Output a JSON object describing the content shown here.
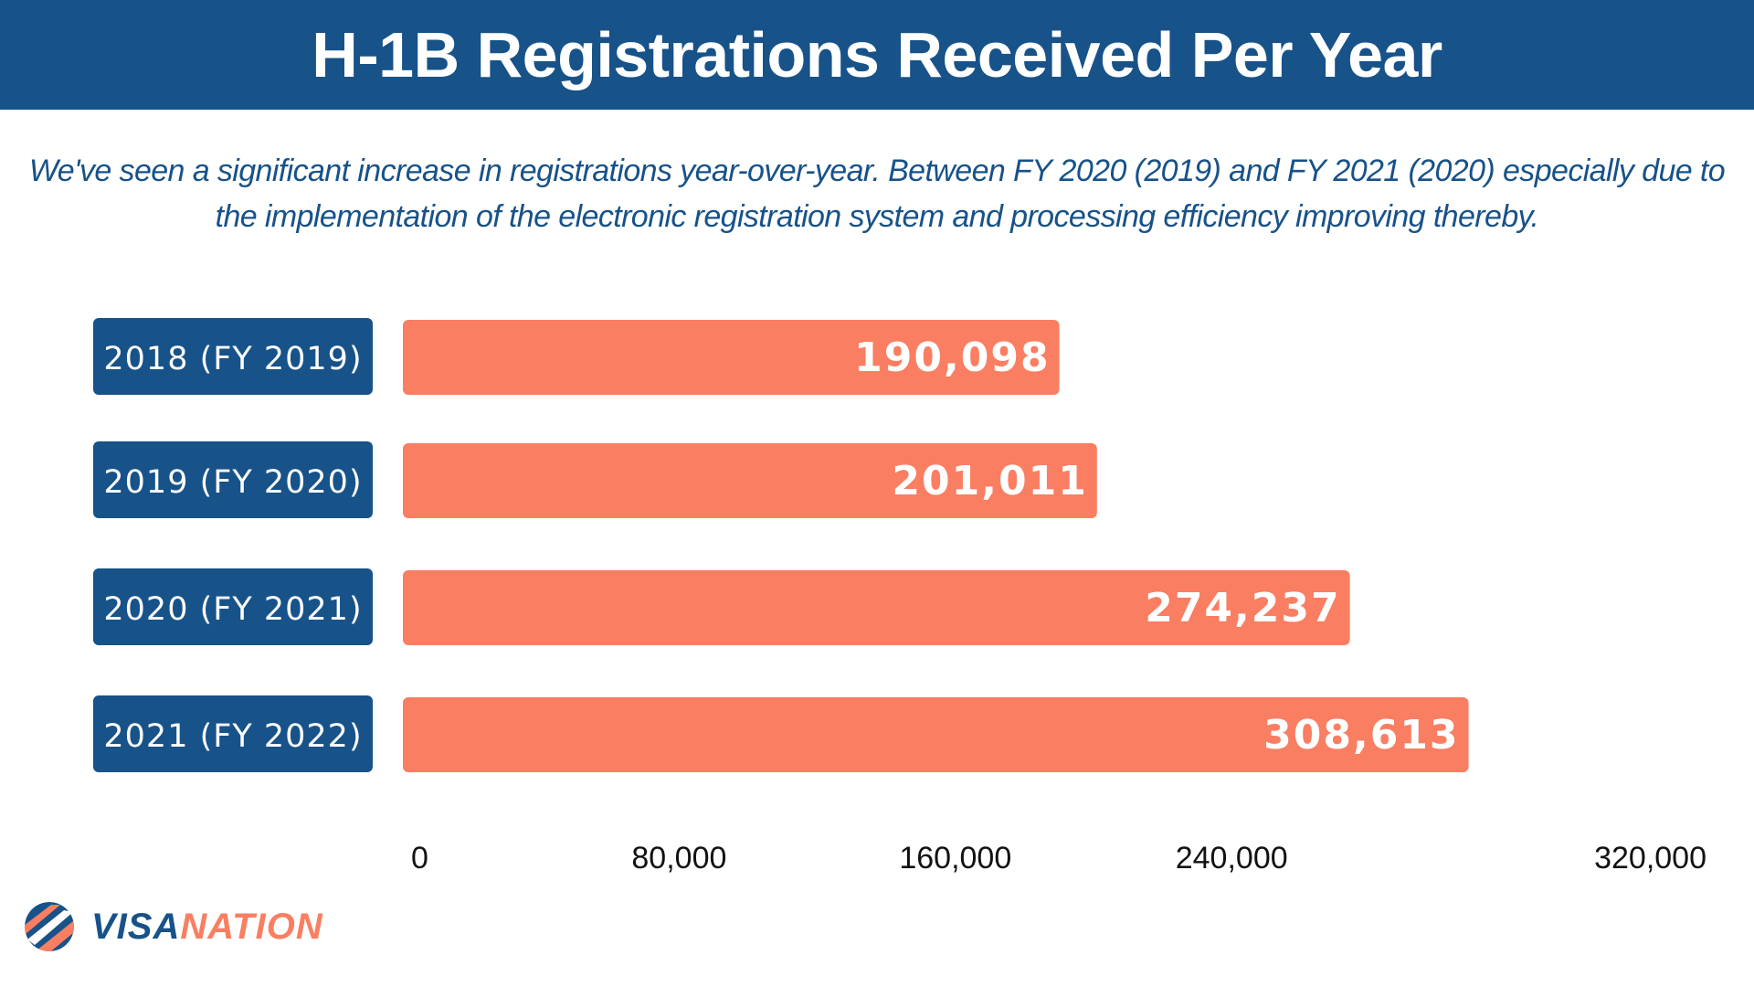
{
  "header": {
    "title": "H-1B Registrations Received Per Year"
  },
  "subtitle": {
    "line1": "We've seen a significant increase in registrations year-over-year.  Between FY 2020 (2019) and FY 2021 (2020) especially due to",
    "line2": "the implementation of the electronic registration system and processing efficiency improving thereby."
  },
  "colors": {
    "header": "#175289",
    "label_box": "#175289",
    "bar": "#f97e62",
    "bar_text": "#ffffff",
    "axis_text": "#111111"
  },
  "chart_data": {
    "type": "bar",
    "orientation": "horizontal",
    "categories": [
      "2018 (FY 2019)",
      "2019 (FY 2020)",
      "2020 (FY 2021)",
      "2021 (FY 2022)"
    ],
    "values": [
      190098,
      201011,
      274237,
      308613
    ],
    "value_labels": [
      "190,098",
      "201,011",
      "274,237",
      "308,613"
    ],
    "xlim": [
      0,
      320000
    ],
    "xticks": [
      0,
      80000,
      160000,
      240000,
      320000
    ],
    "xtick_labels": [
      "0",
      "80,000",
      "160,000",
      "240,000",
      "320,000"
    ],
    "grid": false,
    "legend": "none"
  },
  "logo": {
    "part1": "VISA",
    "part2": "NATION",
    "icon": "visanation-logo-icon"
  }
}
